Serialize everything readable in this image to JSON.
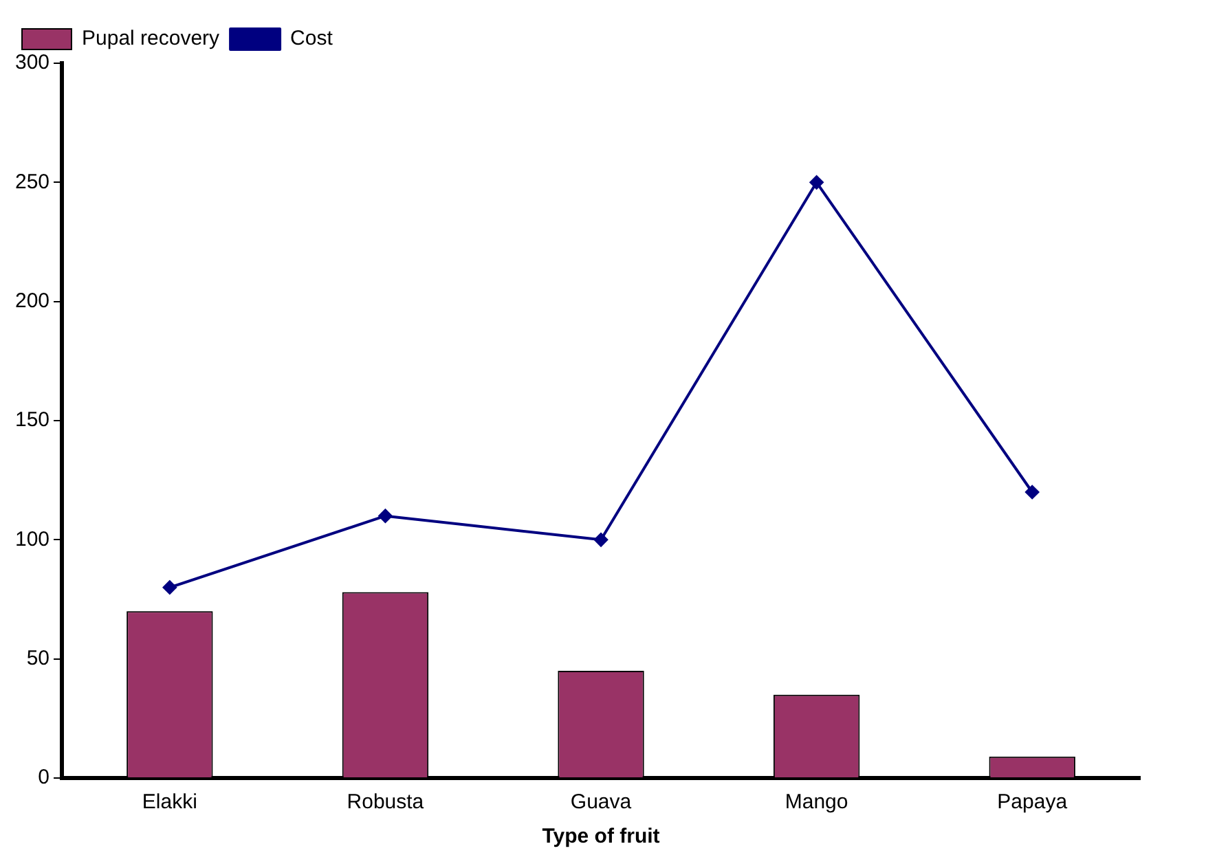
{
  "chart_data": {
    "type": "bar",
    "xlabel": "Type of fruit",
    "categories": [
      "Elakki",
      "Robusta",
      "Guava",
      "Mango",
      "Papaya"
    ],
    "series": [
      {
        "name": "Pupal recovery",
        "color": "#993366",
        "values": [
          70,
          78,
          45,
          35,
          9
        ]
      },
      {
        "name": "Cost",
        "type": "line",
        "color": "#000080",
        "marker": "diamond",
        "values": [
          80,
          110,
          100,
          250,
          120
        ]
      }
    ],
    "ylim": [
      0,
      300
    ],
    "yticks": [
      0,
      50,
      100,
      150,
      200,
      250,
      300
    ],
    "grid": false,
    "legend": "top left"
  }
}
